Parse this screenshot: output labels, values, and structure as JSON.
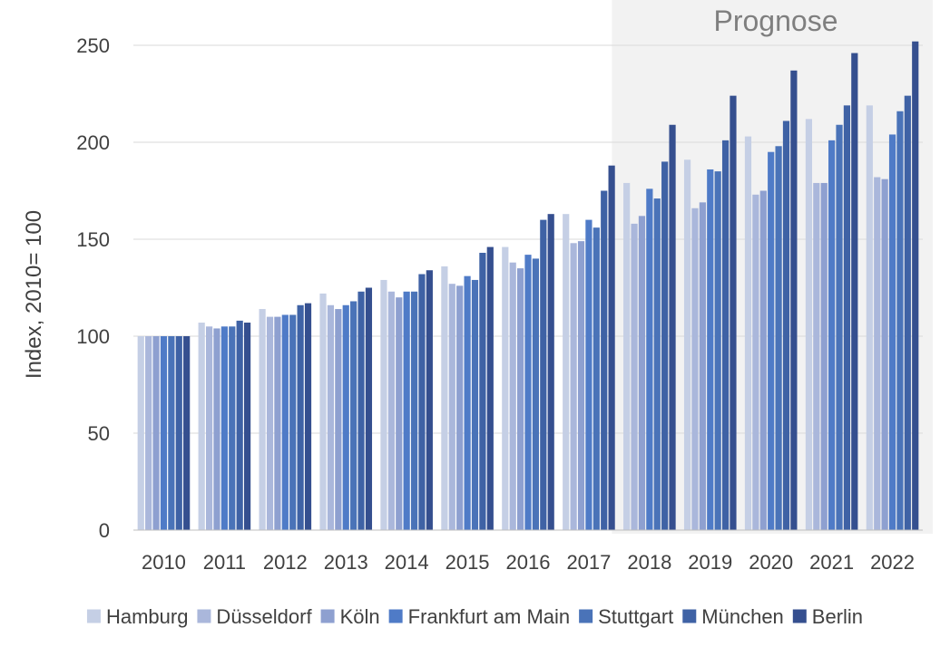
{
  "chart_data": {
    "type": "bar",
    "title": "",
    "xlabel": "",
    "ylabel": "Index, 2010= 100",
    "ylim": [
      0,
      250
    ],
    "yticks": [
      0,
      50,
      100,
      150,
      200,
      250
    ],
    "grid": true,
    "legend_position": "bottom",
    "forecast_label": "Prognose",
    "forecast_from": "2018",
    "categories": [
      "2010",
      "2011",
      "2012",
      "2013",
      "2014",
      "2015",
      "2016",
      "2017",
      "2018",
      "2019",
      "2020",
      "2021",
      "2022"
    ],
    "series": [
      {
        "name": "Hamburg",
        "color": "#c5cfe5",
        "values": [
          100,
          107,
          114,
          122,
          129,
          136,
          146,
          163,
          179,
          191,
          203,
          212,
          219
        ]
      },
      {
        "name": "Düsseldorf",
        "color": "#aab7db",
        "values": [
          100,
          105,
          110,
          116,
          123,
          127,
          138,
          148,
          158,
          166,
          173,
          179,
          182
        ]
      },
      {
        "name": "Köln",
        "color": "#8ea0d0",
        "values": [
          100,
          104,
          110,
          114,
          120,
          126,
          135,
          149,
          162,
          169,
          175,
          179,
          181
        ]
      },
      {
        "name": "Frankfurt am Main",
        "color": "#4f7bc7",
        "values": [
          100,
          105,
          111,
          116,
          123,
          131,
          142,
          160,
          176,
          186,
          195,
          201,
          204
        ]
      },
      {
        "name": "Stuttgart",
        "color": "#4a73b8",
        "values": [
          100,
          105,
          111,
          118,
          123,
          129,
          140,
          156,
          171,
          185,
          198,
          209,
          216
        ]
      },
      {
        "name": "München",
        "color": "#3f62a5",
        "values": [
          100,
          108,
          116,
          123,
          132,
          143,
          160,
          175,
          190,
          201,
          211,
          219,
          224
        ]
      },
      {
        "name": "Berlin",
        "color": "#354f8f",
        "values": [
          100,
          107,
          117,
          125,
          134,
          146,
          163,
          188,
          209,
          224,
          237,
          246,
          252
        ]
      }
    ]
  }
}
